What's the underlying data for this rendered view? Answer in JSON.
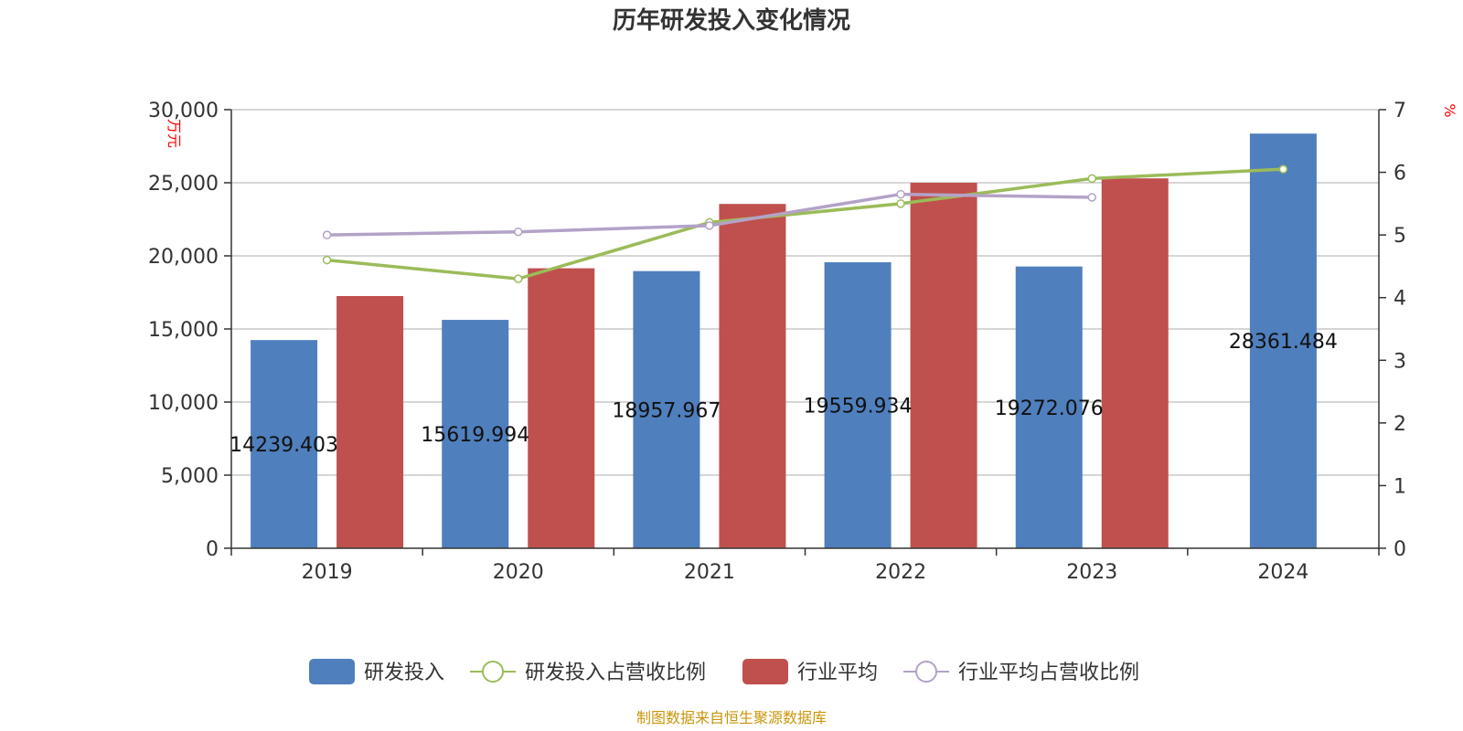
{
  "chart_data": {
    "type": "bar",
    "title": "历年研发投入变化情况",
    "categories": [
      "2019",
      "2020",
      "2021",
      "2022",
      "2023",
      "2024"
    ],
    "y_left": {
      "unit": "万元",
      "ylim": [
        0,
        30000
      ],
      "ticks": [
        0,
        5000,
        10000,
        15000,
        20000,
        25000,
        30000
      ],
      "tick_labels": [
        "0",
        "5,000",
        "10,000",
        "15,000",
        "20,000",
        "25,000",
        "30,000"
      ]
    },
    "y_right": {
      "unit": "%",
      "ylim": [
        0,
        7
      ],
      "ticks": [
        0,
        1,
        2,
        3,
        4,
        5,
        6,
        7
      ],
      "tick_labels": [
        "0",
        "1",
        "2",
        "3",
        "4",
        "5",
        "6",
        "7"
      ]
    },
    "series": [
      {
        "name": "研发投入",
        "type": "bar",
        "axis": "left",
        "color": "#4f7fbd",
        "values": [
          14239.403,
          15619.994,
          18957.967,
          19559.934,
          19272.076,
          28361.484
        ],
        "labels": [
          "14239.403",
          "15619.994",
          "18957.967",
          "19559.934",
          "19272.076",
          "28361.484"
        ]
      },
      {
        "name": "研发投入占营收比例",
        "type": "line",
        "axis": "right",
        "color": "#9bbb59",
        "values": [
          4.6,
          4.3,
          5.2,
          5.5,
          5.9,
          6.05
        ]
      },
      {
        "name": "行业平均",
        "type": "bar",
        "axis": "left",
        "color": "#c0504d",
        "values": [
          17250,
          19150,
          23550,
          25000,
          25300,
          null
        ]
      },
      {
        "name": "行业平均占营收比例",
        "type": "line",
        "axis": "right",
        "color": "#b3a2c7",
        "values": [
          5.0,
          5.05,
          5.15,
          5.65,
          5.6,
          null
        ]
      }
    ],
    "grid": true,
    "legend": "bottom-center",
    "source": "制图数据来自恒生聚源数据库"
  }
}
